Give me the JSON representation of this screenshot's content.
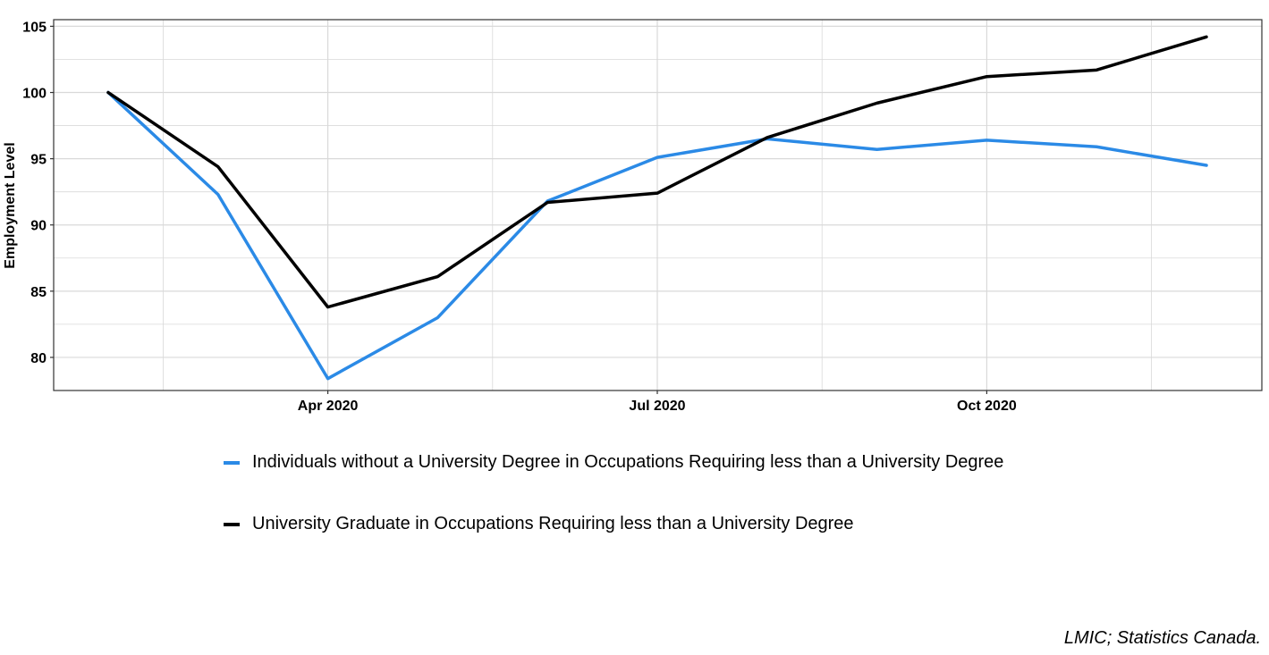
{
  "chart_data": {
    "type": "line",
    "x": [
      "2020-02",
      "2020-03",
      "2020-04",
      "2020-05",
      "2020-06",
      "2020-07",
      "2020-08",
      "2020-09",
      "2020-10",
      "2020-11",
      "2020-12"
    ],
    "series": [
      {
        "name": "Individuals without a University Degree in Occupations Requiring less than a University Degree",
        "color": "#2b8ae6",
        "values": [
          100,
          92.3,
          78.4,
          83.0,
          91.8,
          95.1,
          96.5,
          95.7,
          96.4,
          95.9,
          94.5
        ]
      },
      {
        "name": "University Graduate in Occupations Requiring less than a University Degree",
        "color": "#000000",
        "values": [
          100,
          94.4,
          83.8,
          86.1,
          91.7,
          92.4,
          96.6,
          99.2,
          101.2,
          101.7,
          104.2
        ]
      }
    ],
    "xticks": [
      {
        "x": "2020-04",
        "label": "Apr 2020"
      },
      {
        "x": "2020-07",
        "label": "Jul 2020"
      },
      {
        "x": "2020-10",
        "label": "Oct 2020"
      }
    ],
    "yticks": [
      80,
      85,
      90,
      95,
      100,
      105
    ],
    "ylim": [
      77.5,
      105.5
    ],
    "xlabel": "",
    "ylabel": "Employment Level",
    "grid": true,
    "legend_position": "bottom"
  },
  "source": "LMIC; Statistics Canada."
}
